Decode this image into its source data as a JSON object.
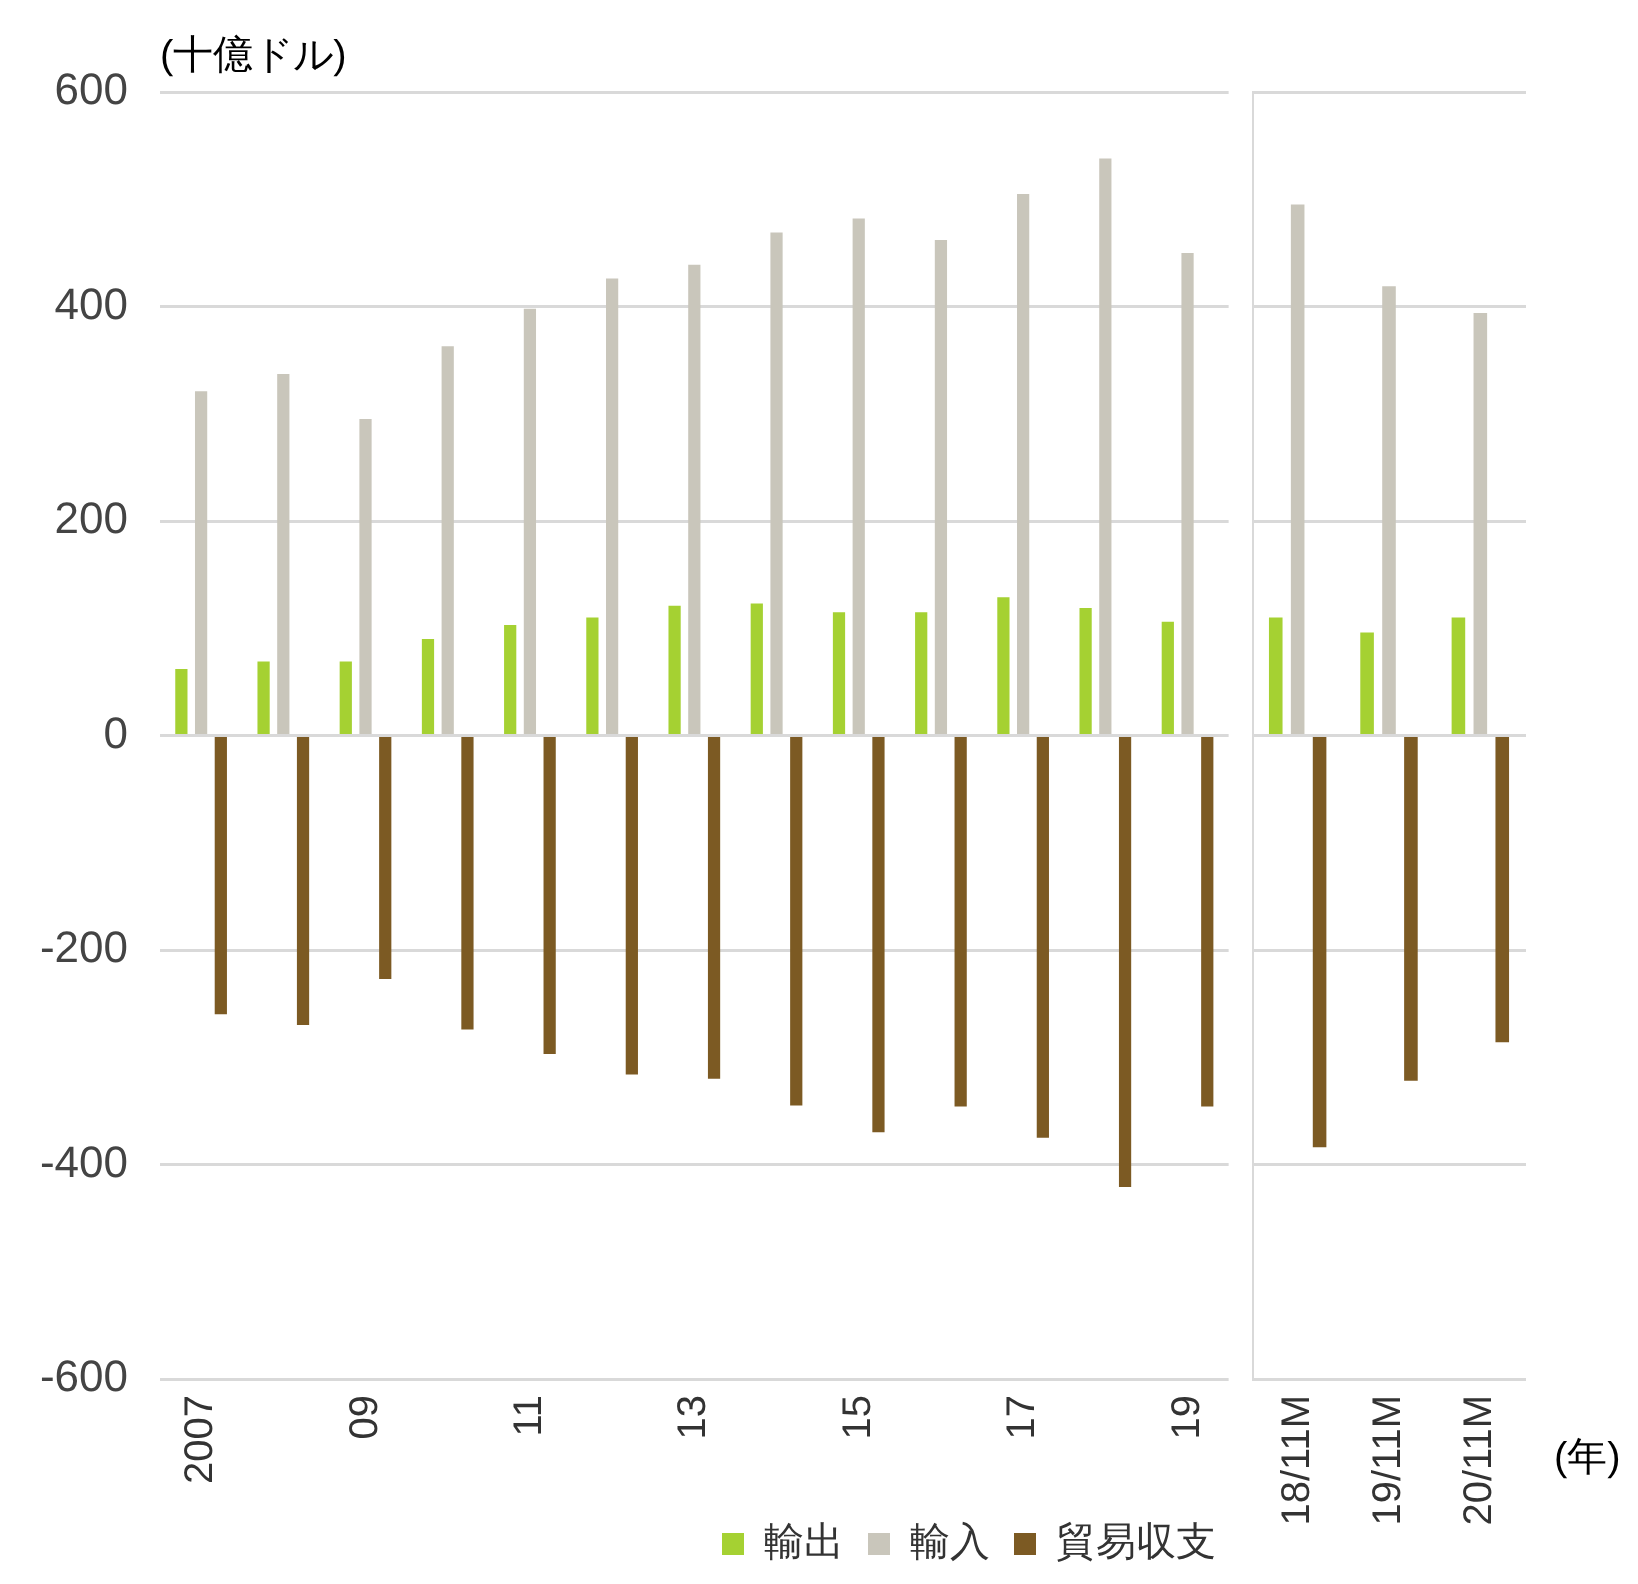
{
  "chart_data": [
    {
      "type": "bar",
      "ylabel": "(十億ドル)",
      "categories": [
        "2007",
        null,
        "09",
        null,
        "11",
        null,
        "13",
        null,
        "15",
        null,
        "17",
        null,
        "19"
      ],
      "series": [
        {
          "name": "輸出",
          "color": "#a5d132",
          "values": [
            62,
            69,
            69,
            90,
            103,
            110,
            121,
            123,
            115,
            115,
            129,
            119,
            106
          ]
        },
        {
          "name": "輸入",
          "color": "#c9c6bb",
          "values": [
            321,
            337,
            295,
            363,
            398,
            426,
            439,
            469,
            482,
            462,
            505,
            538,
            450
          ]
        },
        {
          "name": "貿易収支",
          "color": "#7c5a23",
          "values": [
            -260,
            -270,
            -227,
            -274,
            -297,
            -316,
            -320,
            -345,
            -370,
            -346,
            -375,
            -421,
            -346
          ]
        }
      ],
      "ylim": [
        -600,
        600
      ],
      "yticks": [
        -600,
        -400,
        -200,
        0,
        200,
        400,
        600
      ],
      "grid": "y",
      "legend": "bottom"
    },
    {
      "type": "bar",
      "xlabel": "(年)",
      "categories": [
        "18/11M",
        "19/11M",
        "20/11M"
      ],
      "series": [
        {
          "color": "#a5d132",
          "values": [
            110,
            96,
            110
          ]
        },
        {
          "color": "#c9c6bb",
          "values": [
            495,
            419,
            394
          ]
        },
        {
          "color": "#7c5a23",
          "values": [
            -384,
            -322,
            -286
          ]
        }
      ],
      "ylim": [
        -600,
        600
      ],
      "yticks": [
        -600,
        -400,
        -200,
        0,
        200,
        400,
        600
      ],
      "grid": "y",
      "tick_labels": "x"
    }
  ]
}
